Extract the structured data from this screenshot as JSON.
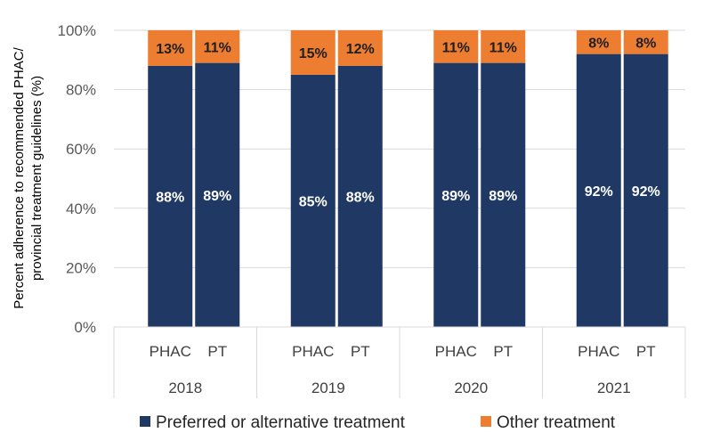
{
  "chart_data": {
    "type": "bar",
    "stacked": true,
    "percent_stacked": true,
    "ylabel_line1": "Percent adherence to recommended PHAC/",
    "ylabel_line2": "provincial treatment guidelines (%)",
    "yticks": [
      "0%",
      "20%",
      "40%",
      "60%",
      "80%",
      "100%"
    ],
    "ylim": [
      0,
      100
    ],
    "grid": true,
    "legend_position": "bottom",
    "groups": [
      "2018",
      "2019",
      "2020",
      "2021"
    ],
    "categories": [
      "PHAC",
      "PT",
      "PHAC",
      "PT",
      "PHAC",
      "PT",
      "PHAC",
      "PT"
    ],
    "series": [
      {
        "name": "Preferred or alternative treatment",
        "color": "#203864",
        "values": [
          88,
          89,
          85,
          88,
          89,
          89,
          92,
          92
        ],
        "labels": [
          "88%",
          "89%",
          "85%",
          "88%",
          "89%",
          "89%",
          "92%",
          "92%"
        ]
      },
      {
        "name": "Other treatment",
        "color": "#ED7D31",
        "values": [
          13,
          11,
          15,
          12,
          11,
          11,
          8,
          8
        ],
        "labels": [
          "13%",
          "11%",
          "15%",
          "12%",
          "11%",
          "11%",
          "8%",
          "8%"
        ]
      }
    ]
  }
}
